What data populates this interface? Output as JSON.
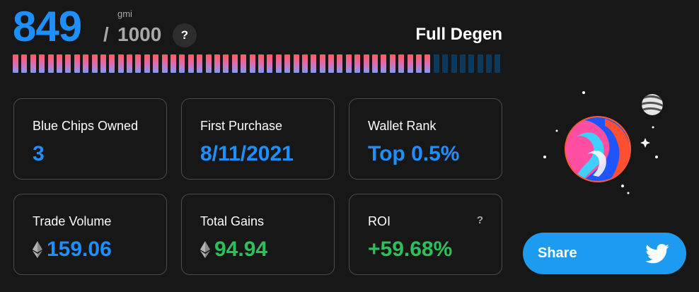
{
  "score": {
    "value": "849",
    "slash": "/",
    "max": "1000",
    "unit": "gmi",
    "help": "?",
    "tier": "Full Degen",
    "progress_fraction": 0.849,
    "segment_count": 56
  },
  "colors": {
    "accent_blue": "#1e8fff",
    "gain_green": "#2fbf5a",
    "muted_text": "#a8a8a8",
    "share_bg": "#1d9bf0"
  },
  "cards": [
    {
      "label": "Blue Chips Owned",
      "value": "3",
      "icon": "",
      "color": "blue",
      "help": ""
    },
    {
      "label": "First Purchase",
      "value": "8/11/2021",
      "icon": "",
      "color": "blue",
      "help": ""
    },
    {
      "label": "Wallet Rank",
      "value": "Top 0.5%",
      "icon": "",
      "color": "blue",
      "help": ""
    },
    {
      "label": "Trade Volume",
      "value": "159.06",
      "icon": "ethereum-icon",
      "color": "blue",
      "help": ""
    },
    {
      "label": "Total Gains",
      "value": "94.94",
      "icon": "ethereum-icon",
      "color": "green",
      "help": ""
    },
    {
      "label": "ROI",
      "value": "+59.68%",
      "icon": "",
      "color": "green",
      "help": "?"
    }
  ],
  "illustration": {
    "icon": "planet-illustration"
  },
  "share": {
    "label": "Share",
    "icon": "twitter-icon"
  }
}
